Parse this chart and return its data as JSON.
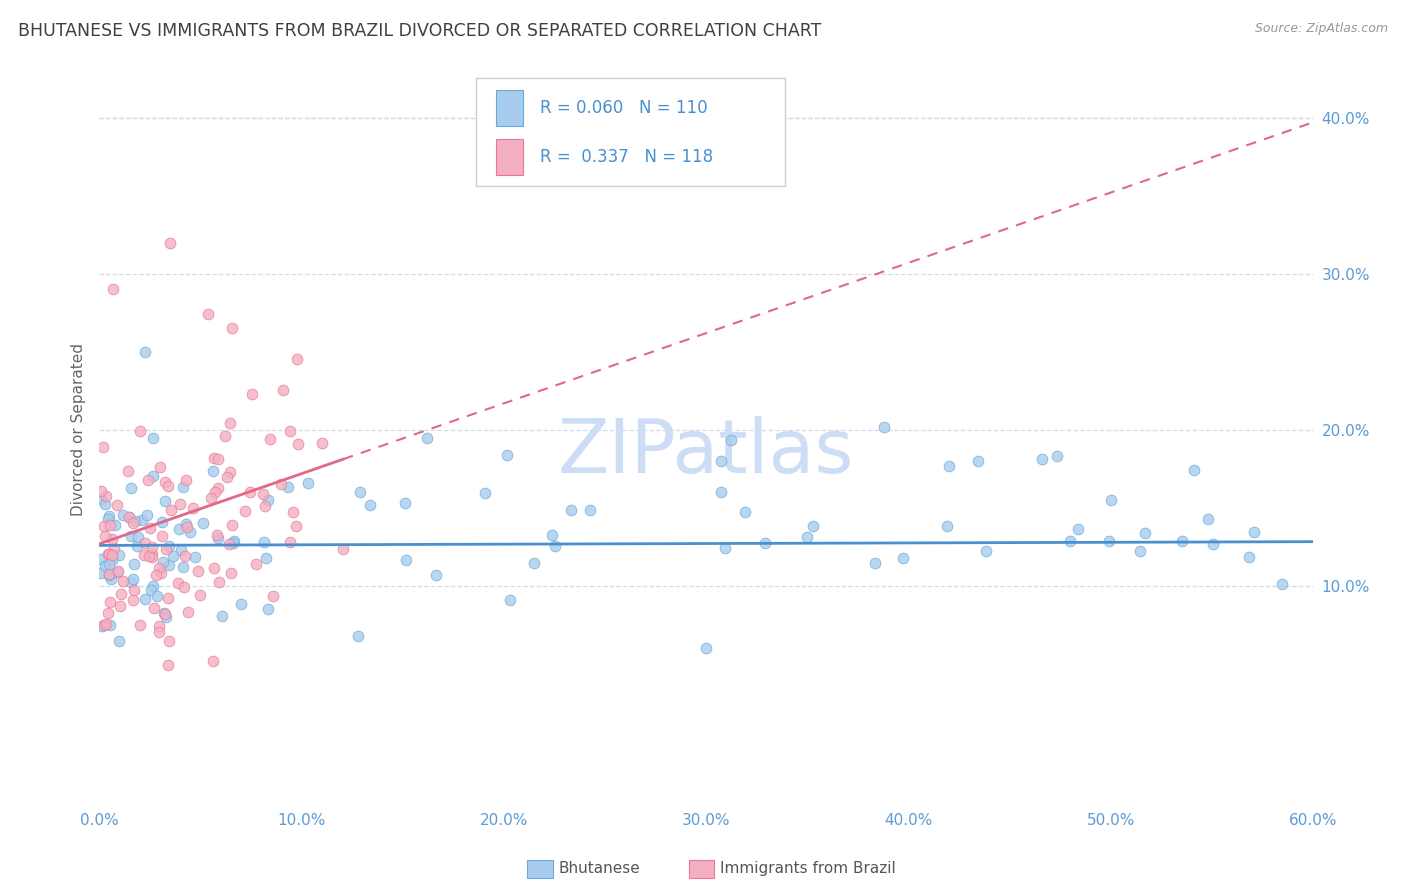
{
  "title": "BHUTANESE VS IMMIGRANTS FROM BRAZIL DIVORCED OR SEPARATED CORRELATION CHART",
  "source": "Source: ZipAtlas.com",
  "ylabel": "Divorced or Separated",
  "xlim": [
    0.0,
    0.6
  ],
  "ylim": [
    -0.04,
    0.44
  ],
  "yticks": [
    0.1,
    0.2,
    0.3,
    0.4
  ],
  "xticks": [
    0.0,
    0.1,
    0.2,
    0.3,
    0.4,
    0.5,
    0.6
  ],
  "blue_R": 0.06,
  "blue_N": 110,
  "pink_R": 0.337,
  "pink_N": 118,
  "blue_color": "#a8ccee",
  "pink_color": "#f4afc0",
  "blue_edge_color": "#6aaad8",
  "pink_edge_color": "#e87898",
  "blue_line_color": "#4a8fd0",
  "pink_line_color": "#e06888",
  "axis_color": "#5b9bd5",
  "grid_color": "#d0dcea",
  "title_color": "#404040",
  "watermark": "ZIPatlas",
  "watermark_color": "#ccddf5",
  "legend_color": "#4a8fd0"
}
